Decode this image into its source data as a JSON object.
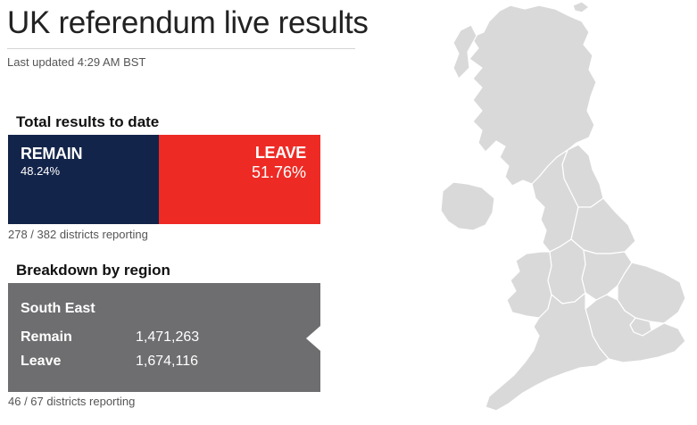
{
  "header": {
    "title": "UK referendum live results",
    "last_updated": "Last updated 4:29 AM BST"
  },
  "total": {
    "label": "Total results to date",
    "remain": {
      "name": "REMAIN",
      "percent": "48.24%",
      "color": "#13244a"
    },
    "leave": {
      "name": "LEAVE",
      "percent": "51.76%",
      "color": "#ee2a24"
    },
    "remain_share": 48.24,
    "reporting": "278 / 382 districts reporting"
  },
  "breakdown": {
    "label": "Breakdown by region",
    "region": {
      "name": "South East",
      "remain_label": "Remain",
      "remain_value": "1,471,263",
      "leave_label": "Leave",
      "leave_value": "1,674,116",
      "reporting": "46 / 67 districts reporting"
    }
  },
  "map": {
    "fill_color": "#d9d9d9",
    "border_color": "#ffffff",
    "regions": [
      "Scotland",
      "Northern Ireland",
      "North East",
      "North West",
      "Yorkshire and the Humber",
      "Wales",
      "West Midlands",
      "East Midlands",
      "East of England",
      "London",
      "South West",
      "South East"
    ]
  }
}
